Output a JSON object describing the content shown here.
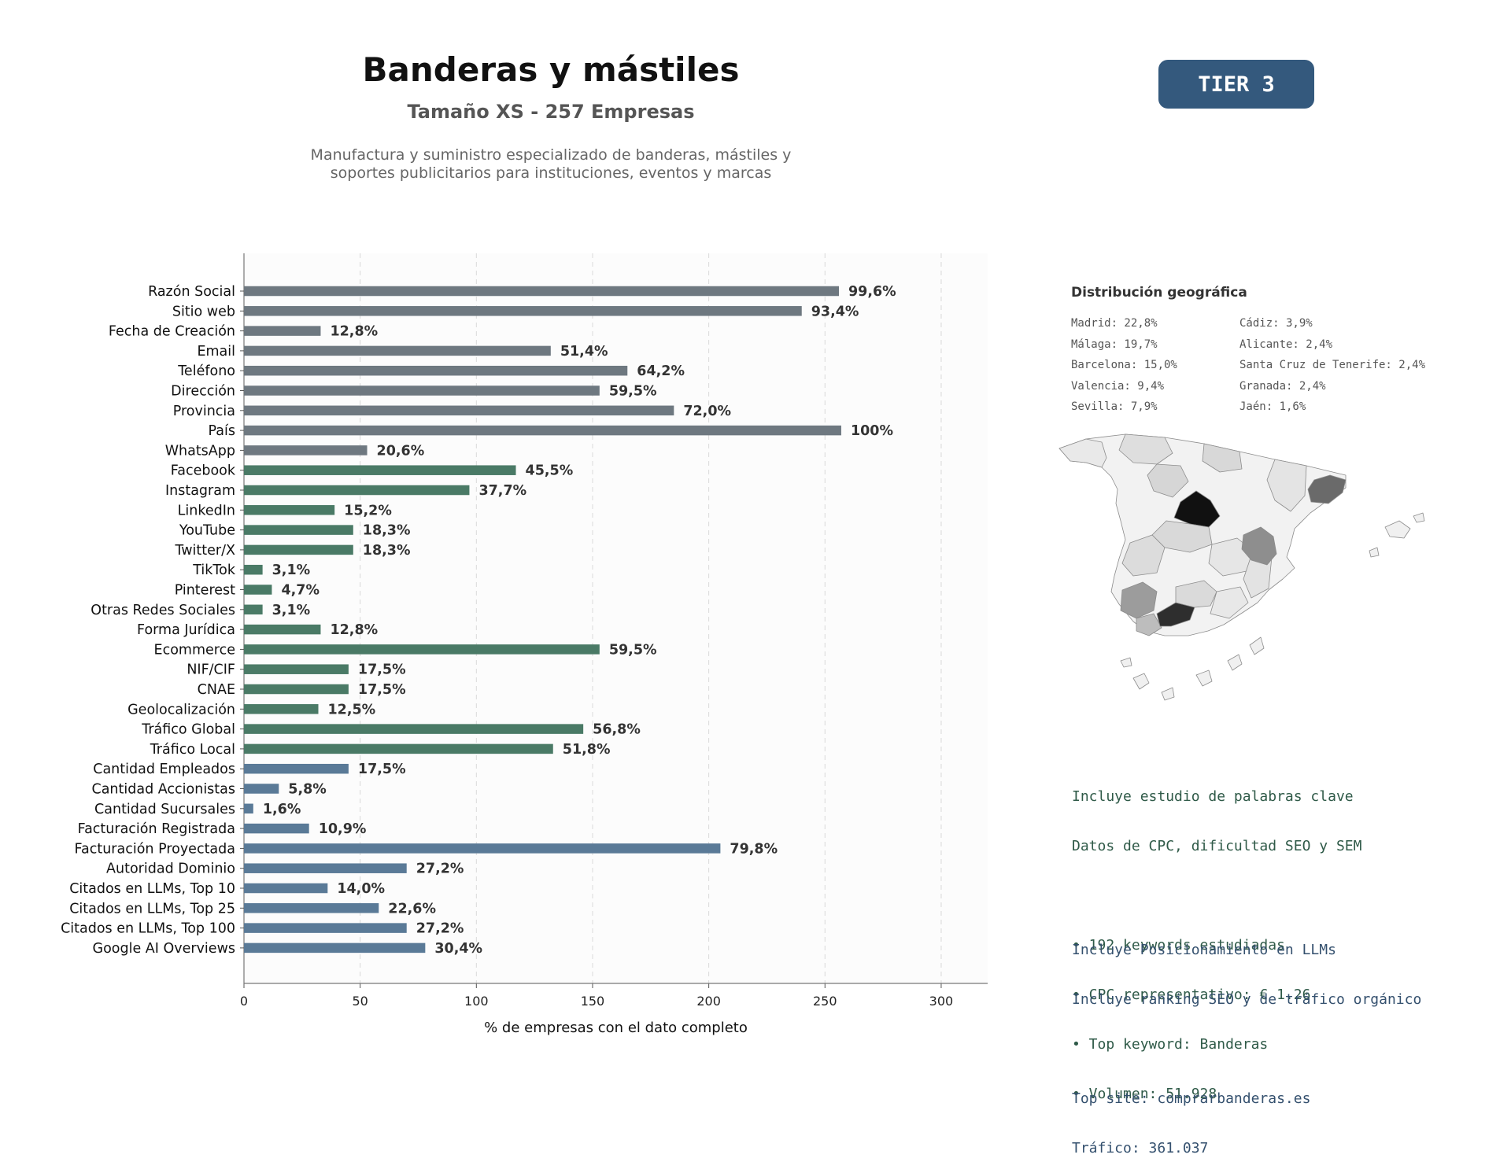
{
  "header": {
    "title": "Banderas y mástiles",
    "subtitle": "Tamaño XS - 257 Empresas",
    "description_lines": [
      "Manufactura y suministro especializado de banderas, mástiles y",
      "soportes publicitarios para instituciones, eventos y marcas"
    ],
    "tier_label": "TIER 3",
    "tier_color": "#34597d"
  },
  "chart_data": {
    "type": "bar",
    "orientation": "horizontal",
    "xlabel": "% de empresas con el dato completo",
    "ylabel": "",
    "xlim": [
      0,
      320
    ],
    "xticks": [
      0,
      50,
      100,
      150,
      200,
      250,
      300
    ],
    "grid": "vertical-dashed",
    "colors": {
      "group1": "#6e7880",
      "group2": "#4a7a66",
      "group3": "#5a7a97"
    },
    "categories": [
      "Razón Social",
      "Sitio web",
      "Fecha de Creación",
      "Email",
      "Teléfono",
      "Dirección",
      "Provincia",
      "País",
      "WhatsApp",
      "Facebook",
      "Instagram",
      "LinkedIn",
      "YouTube",
      "Twitter/X",
      "TikTok",
      "Pinterest",
      "Otras Redes Sociales",
      "Forma Jurídica",
      "Ecommerce",
      "NIF/CIF",
      "CNAE",
      "Geolocalización",
      "Tráfico Global",
      "Tráfico Local",
      "Cantidad Empleados",
      "Cantidad Accionistas",
      "Cantidad Sucursales",
      "Facturación Registrada",
      "Facturación Proyectada",
      "Autoridad Dominio",
      "Citados en LLMs, Top 10",
      "Citados en LLMs, Top 25",
      "Citados en LLMs, Top 100",
      "Google AI Overviews"
    ],
    "values": [
      256,
      240,
      33,
      132,
      165,
      153,
      185,
      257,
      53,
      117,
      97,
      39,
      47,
      47,
      8,
      12,
      8,
      33,
      153,
      45,
      45,
      32,
      146,
      133,
      45,
      15,
      4,
      28,
      205,
      70,
      36,
      58,
      70,
      78
    ],
    "labels": [
      "99,6%",
      "93,4%",
      "12,8%",
      "51,4%",
      "64,2%",
      "59,5%",
      "72,0%",
      "100%",
      "20,6%",
      "45,5%",
      "37,7%",
      "15,2%",
      "18,3%",
      "18,3%",
      "3,1%",
      "4,7%",
      "3,1%",
      "12,8%",
      "59,5%",
      "17,5%",
      "17,5%",
      "12,5%",
      "56,8%",
      "51,8%",
      "17,5%",
      "5,8%",
      "1,6%",
      "10,9%",
      "79,8%",
      "27,2%",
      "14,0%",
      "22,6%",
      "27,2%",
      "30,4%"
    ],
    "groups": [
      1,
      1,
      1,
      1,
      1,
      1,
      1,
      1,
      1,
      2,
      2,
      2,
      2,
      2,
      2,
      2,
      2,
      2,
      2,
      2,
      2,
      2,
      2,
      2,
      3,
      3,
      3,
      3,
      3,
      3,
      3,
      3,
      3,
      3
    ]
  },
  "geo": {
    "title": "Distribución geográfica",
    "items": [
      "Madrid: 22,8%",
      "Cádiz: 3,9%",
      "Málaga: 19,7%",
      "Alicante: 2,4%",
      "Barcelona: 15,0%",
      "Santa Cruz de Tenerife: 2,4%",
      "Valencia: 9,4%",
      "Granada: 2,4%",
      "Sevilla: 7,9%",
      "Jaén: 1,6%"
    ],
    "map_icon": "spain-provinces-map"
  },
  "keywords": {
    "lines": [
      "Incluye estudio de palabras clave",
      "Datos de CPC, dificultad SEO y SEM",
      "",
      "• 192 keywords estudiadas",
      "• CPC representativo: € 1.26",
      "• Top keyword: Banderas",
      "• Volumen: 51.928"
    ],
    "color": "#2f5a48"
  },
  "llm": {
    "lines": [
      "Incluye Posicionamiento en LLMs",
      "Incluye ranking SEO y de tráfico orgánico",
      "",
      "Top site: comprarbanderas.es",
      "Tráfico: 361.037"
    ],
    "color": "#34506e"
  }
}
